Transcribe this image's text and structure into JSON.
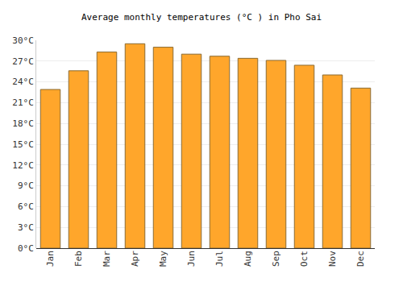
{
  "chart_data": {
    "type": "bar",
    "title": "Average monthly temperatures (°C ) in Pho Sai",
    "categories": [
      "Jan",
      "Feb",
      "Mar",
      "Apr",
      "May",
      "Jun",
      "Jul",
      "Aug",
      "Sep",
      "Oct",
      "Nov",
      "Dec"
    ],
    "values": [
      22.9,
      25.6,
      28.3,
      29.5,
      29.0,
      28.0,
      27.7,
      27.4,
      27.1,
      26.4,
      25.0,
      23.1
    ],
    "color": "#ffa62b",
    "ylim": [
      0,
      30
    ],
    "yticks": [
      {
        "value": 0,
        "label": "0°C"
      },
      {
        "value": 3,
        "label": "3°C"
      },
      {
        "value": 6,
        "label": "6°C"
      },
      {
        "value": 9,
        "label": "9°C"
      },
      {
        "value": 12,
        "label": "12°C"
      },
      {
        "value": 15,
        "label": "15°C"
      },
      {
        "value": 18,
        "label": "18°C"
      },
      {
        "value": 21,
        "label": "21°C"
      },
      {
        "value": 24,
        "label": "24°C"
      },
      {
        "value": 27,
        "label": "27°C"
      },
      {
        "value": 30,
        "label": "30°C"
      }
    ],
    "grid": true
  }
}
